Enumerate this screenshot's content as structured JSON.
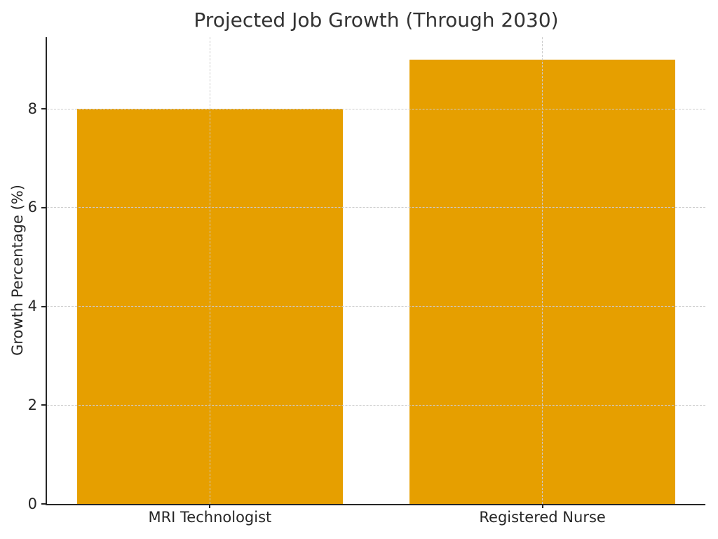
{
  "chart_data": {
    "type": "bar",
    "title": "Projected Job Growth (Through 2030)",
    "xlabel": "",
    "ylabel": "Growth Percentage (%)",
    "categories": [
      "MRI Technologist",
      "Registered Nurse"
    ],
    "values": [
      8,
      9
    ],
    "yticks": [
      0,
      2,
      4,
      6,
      8
    ],
    "ylim": [
      0,
      9.45
    ],
    "bar_width_fraction": 0.8,
    "x_margin_fraction": 0.05,
    "grid": true,
    "grid_style": "dashed",
    "legend": "none",
    "colors": {
      "bar": "#E69F00",
      "grid": "#cccccc",
      "spine": "#262626",
      "text": "#262626",
      "background": "#ffffff"
    }
  }
}
